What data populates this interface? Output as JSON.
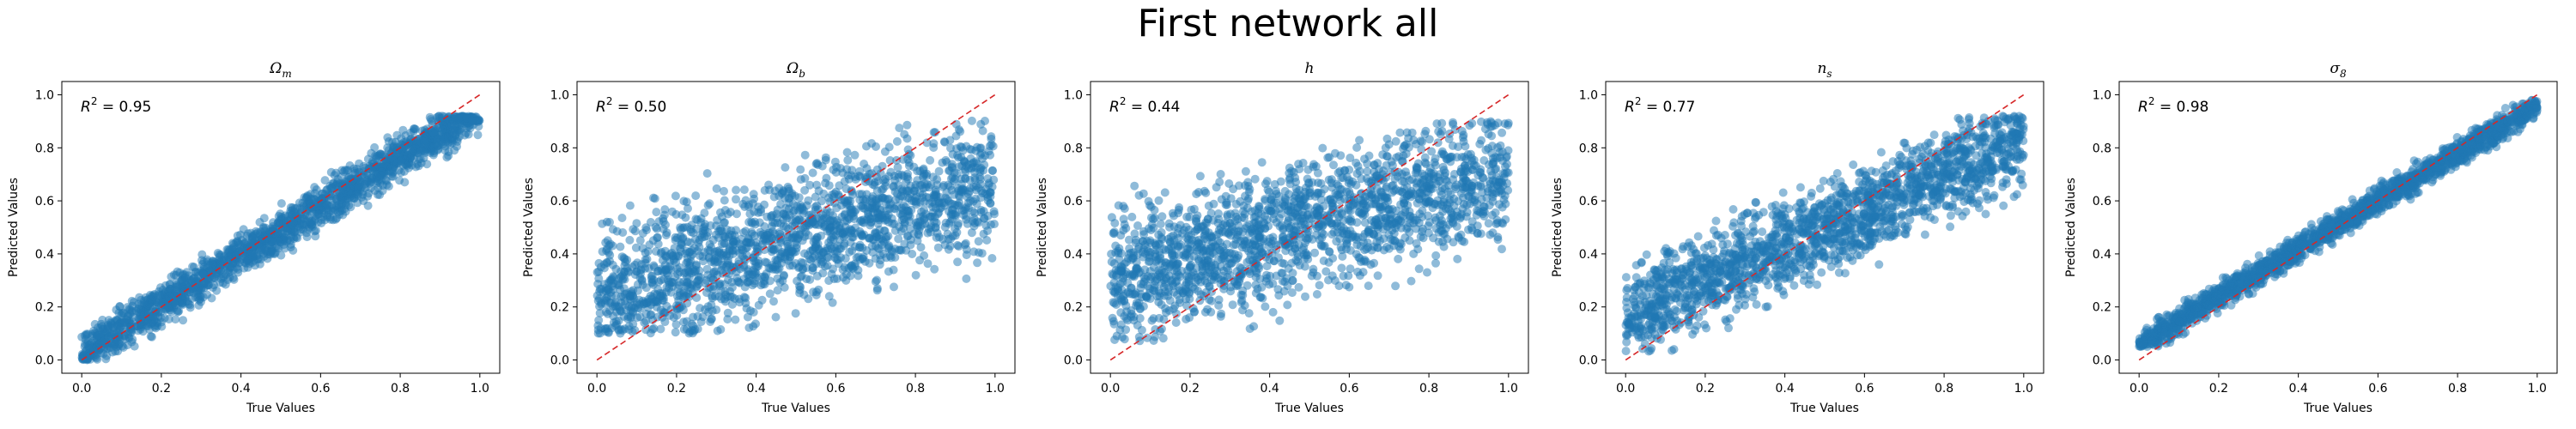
{
  "figure": {
    "title": "First network all"
  },
  "chart_data": [
    {
      "type": "scatter",
      "title": "Ωm",
      "title_base": "Ω",
      "title_sub": "m",
      "xlabel": "True Values",
      "ylabel": "Predicted Values",
      "annotation_prefix": "R",
      "annotation_value": " = 0.95",
      "r2": 0.95,
      "xlim": [
        -0.05,
        1.05
      ],
      "ylim": [
        -0.05,
        1.05
      ],
      "xticks": [
        "0.0",
        "0.2",
        "0.4",
        "0.6",
        "0.8",
        "1.0"
      ],
      "yticks": [
        "0.0",
        "0.2",
        "0.4",
        "0.6",
        "0.8",
        "1.0"
      ],
      "reference_line": {
        "x": [
          0,
          1
        ],
        "y": [
          0,
          1
        ],
        "color": "#d62728",
        "style": "dashed"
      },
      "points_color": "#1f77b4",
      "n_points": 1800,
      "trend": {
        "slope": 0.93,
        "intercept": 0.02,
        "spread": 0.04,
        "y_min": 0.0,
        "y_max": 0.92
      },
      "grid": false
    },
    {
      "type": "scatter",
      "title": "Ωb",
      "title_base": "Ω",
      "title_sub": "b",
      "xlabel": "True Values",
      "ylabel": "Predicted Values",
      "annotation_prefix": "R",
      "annotation_value": " = 0.50",
      "r2": 0.5,
      "xlim": [
        -0.05,
        1.05
      ],
      "ylim": [
        -0.05,
        1.05
      ],
      "xticks": [
        "0.0",
        "0.2",
        "0.4",
        "0.6",
        "0.8",
        "1.0"
      ],
      "yticks": [
        "0.0",
        "0.2",
        "0.4",
        "0.6",
        "0.8",
        "1.0"
      ],
      "reference_line": {
        "x": [
          0,
          1
        ],
        "y": [
          0,
          1
        ],
        "color": "#d62728",
        "style": "dashed"
      },
      "points_color": "#1f77b4",
      "n_points": 1800,
      "trend": {
        "slope": 0.42,
        "intercept": 0.25,
        "spread": 0.12,
        "y_min": 0.1,
        "y_max": 0.96
      },
      "grid": false
    },
    {
      "type": "scatter",
      "title": "h",
      "title_base": "h",
      "title_sub": "",
      "xlabel": "True Values",
      "ylabel": "Predicted Values",
      "annotation_prefix": "R",
      "annotation_value": " = 0.44",
      "r2": 0.44,
      "xlim": [
        -0.05,
        1.05
      ],
      "ylim": [
        -0.05,
        1.05
      ],
      "xticks": [
        "0.0",
        "0.2",
        "0.4",
        "0.6",
        "0.8",
        "1.0"
      ],
      "yticks": [
        "0.0",
        "0.2",
        "0.4",
        "0.6",
        "0.8",
        "1.0"
      ],
      "reference_line": {
        "x": [
          0,
          1
        ],
        "y": [
          0,
          1
        ],
        "color": "#d62728",
        "style": "dashed"
      },
      "points_color": "#1f77b4",
      "n_points": 1800,
      "trend": {
        "slope": 0.4,
        "intercept": 0.3,
        "spread": 0.12,
        "y_min": 0.06,
        "y_max": 0.9
      },
      "grid": false
    },
    {
      "type": "scatter",
      "title": "ns",
      "title_base": "n",
      "title_sub": "s",
      "xlabel": "True Values",
      "ylabel": "Predicted Values",
      "annotation_prefix": "R",
      "annotation_value": " = 0.77",
      "r2": 0.77,
      "xlim": [
        -0.05,
        1.05
      ],
      "ylim": [
        -0.05,
        1.05
      ],
      "xticks": [
        "0.0",
        "0.2",
        "0.4",
        "0.6",
        "0.8",
        "1.0"
      ],
      "yticks": [
        "0.0",
        "0.2",
        "0.4",
        "0.6",
        "0.8",
        "1.0"
      ],
      "reference_line": {
        "x": [
          0,
          1
        ],
        "y": [
          0,
          1
        ],
        "color": "#d62728",
        "style": "dashed"
      },
      "points_color": "#1f77b4",
      "n_points": 1800,
      "trend": {
        "slope": 0.65,
        "intercept": 0.17,
        "spread": 0.085,
        "y_min": 0.03,
        "y_max": 0.92
      },
      "grid": false
    },
    {
      "type": "scatter",
      "title": "σ8",
      "title_base": "σ",
      "title_sub": "8",
      "xlabel": "True Values",
      "ylabel": "Predicted Values",
      "annotation_prefix": "R",
      "annotation_value": " = 0.98",
      "r2": 0.98,
      "xlim": [
        -0.05,
        1.05
      ],
      "ylim": [
        -0.05,
        1.05
      ],
      "xticks": [
        "0.0",
        "0.2",
        "0.4",
        "0.6",
        "0.8",
        "1.0"
      ],
      "yticks": [
        "0.0",
        "0.2",
        "0.4",
        "0.6",
        "0.8",
        "1.0"
      ],
      "reference_line": {
        "x": [
          0,
          1
        ],
        "y": [
          0,
          1
        ],
        "color": "#d62728",
        "style": "dashed"
      },
      "points_color": "#1f77b4",
      "n_points": 1800,
      "trend": {
        "slope": 0.9,
        "intercept": 0.06,
        "spread": 0.025,
        "y_min": 0.05,
        "y_max": 0.98
      },
      "grid": false
    }
  ]
}
